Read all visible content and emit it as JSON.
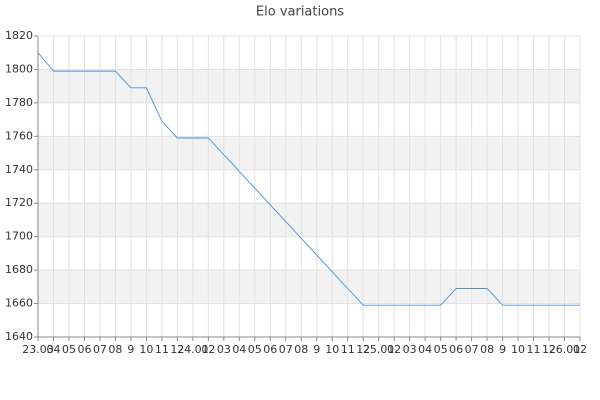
{
  "chart_data": {
    "type": "line",
    "title": "Elo variations",
    "categories": [
      "23.03",
      "04",
      "05",
      "06",
      "07",
      "08",
      "9",
      "10",
      "11",
      "12",
      "24.01",
      "02",
      "03",
      "04",
      "05",
      "06",
      "07",
      "08",
      "9",
      "10",
      "11",
      "12",
      "25.01",
      "02",
      "03",
      "04",
      "05",
      "06",
      "07",
      "08",
      "9",
      "10",
      "11",
      "12",
      "26.01",
      "02"
    ],
    "series": [
      {
        "name": "Elo",
        "color": "#4a8fdb",
        "values": [
          1810,
          1799,
          1799,
          1799,
          1799,
          1799,
          1789,
          1789,
          1769,
          1759,
          1759,
          1759,
          1749,
          1739,
          1729,
          1719,
          1709,
          1699,
          1689,
          1679,
          1669,
          1659,
          1659,
          1659,
          1659,
          1659,
          1659,
          1669,
          1669,
          1669,
          1659,
          1659,
          1659,
          1659,
          1659,
          1659
        ]
      }
    ],
    "ylim": [
      1640,
      1820
    ],
    "yticks": [
      1640,
      1660,
      1680,
      1700,
      1720,
      1740,
      1760,
      1780,
      1800,
      1820
    ],
    "grid": true
  }
}
